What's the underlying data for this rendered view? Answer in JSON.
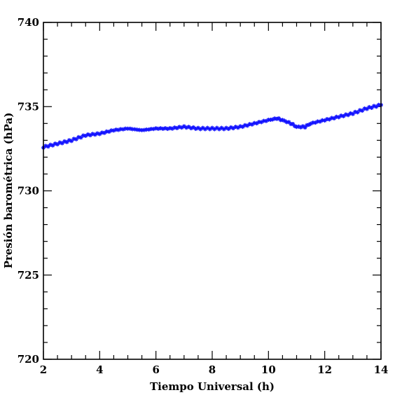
{
  "chart_data": {
    "type": "scatter",
    "title": "",
    "xlabel": "Tiempo Universal (h)",
    "ylabel": "Presión barométrica (hPa)",
    "xlim": [
      2,
      14
    ],
    "ylim": [
      720,
      740
    ],
    "xticks": [
      2,
      4,
      6,
      8,
      10,
      12,
      14
    ],
    "yticks": [
      720,
      725,
      730,
      735,
      740
    ],
    "x_minor_step": 0.5,
    "y_minor_step": 1,
    "grid": false,
    "marker": "star",
    "color": "#1414ff",
    "series": [
      {
        "x": [
          2.0,
          2.5,
          3.0,
          3.5,
          4.0,
          4.5,
          5.0,
          5.5,
          6.0,
          6.5,
          7.0,
          7.5,
          8.0,
          8.5,
          9.0,
          9.5,
          10.0,
          10.3,
          10.5,
          10.8,
          11.0,
          11.3,
          11.5,
          12.0,
          12.5,
          13.0,
          13.5,
          14.0
        ],
        "y": [
          732.6,
          732.8,
          733.0,
          733.3,
          733.4,
          733.6,
          733.7,
          733.6,
          733.7,
          733.7,
          733.8,
          733.7,
          733.7,
          733.7,
          733.8,
          734.0,
          734.2,
          734.3,
          734.2,
          734.0,
          733.8,
          733.8,
          734.0,
          734.2,
          734.4,
          734.6,
          734.9,
          735.1
        ]
      }
    ]
  }
}
